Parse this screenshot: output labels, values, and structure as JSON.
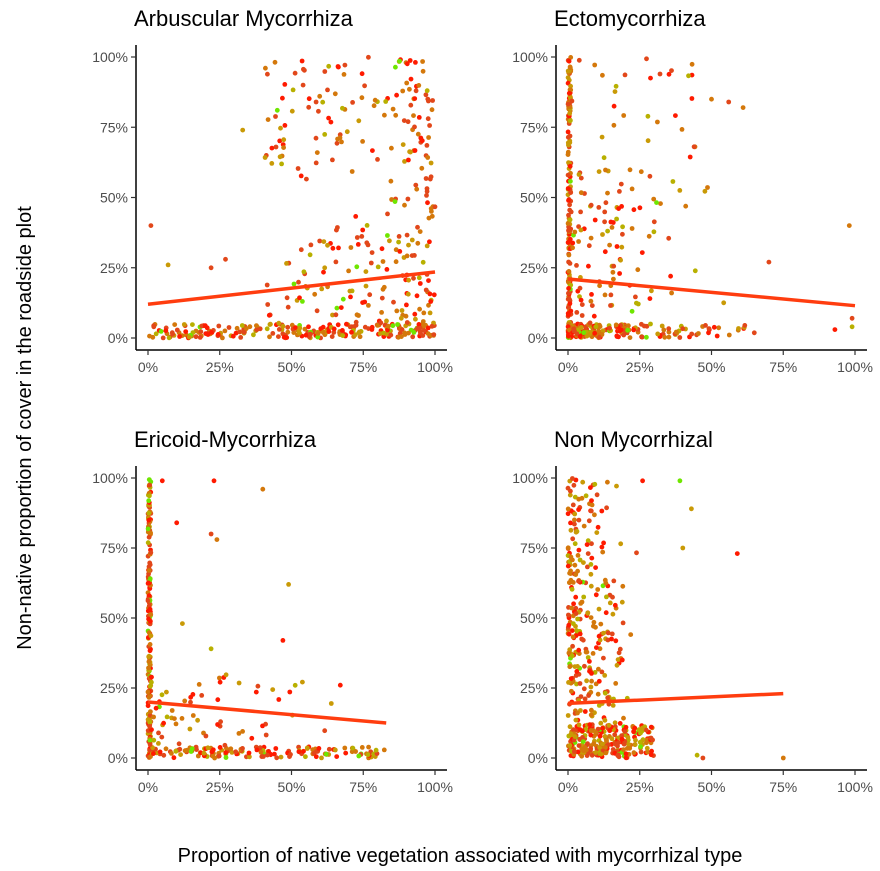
{
  "figure": {
    "xlabel": "Proportion of native vegetation associated with mycorrhizal type",
    "ylabel": "Non-native proportion of cover in the roadside plot"
  },
  "chart_data": [
    {
      "type": "scatter",
      "title": "Arbuscular Mycorrhiza",
      "xlabel": "Proportion of native vegetation associated with mycorrhizal type",
      "ylabel": "Non-native proportion of cover in the roadside plot",
      "xlim": [
        0,
        1
      ],
      "ylim": [
        0,
        1
      ],
      "x_ticks": [
        "0%",
        "25%",
        "50%",
        "75%",
        "100%"
      ],
      "y_ticks": [
        "0%",
        "25%",
        "50%",
        "75%",
        "100%"
      ],
      "trend_line": {
        "x": [
          0,
          1
        ],
        "y": [
          0.12,
          0.235
        ]
      },
      "point_count_estimate": 520,
      "point_pattern": "points spread across x; dense near y=0 and increasingly spread up to 100% for x above 0.4",
      "colors": {
        "points": [
          "#ff1a00",
          "#e2471a",
          "#d4780b",
          "#c99a06",
          "#b8b000",
          "#6fe600"
        ],
        "trend": "#ff3d0f"
      },
      "grid": false
    },
    {
      "type": "scatter",
      "title": "Ectomycorrhiza",
      "xlabel": "Proportion of native vegetation associated with mycorrhizal type",
      "ylabel": "Non-native proportion of cover in the roadside plot",
      "xlim": [
        0,
        1
      ],
      "ylim": [
        0,
        1
      ],
      "x_ticks": [
        "0%",
        "25%",
        "50%",
        "75%",
        "100%"
      ],
      "y_ticks": [
        "0%",
        "25%",
        "50%",
        "75%",
        "100%"
      ],
      "trend_line": {
        "x": [
          0,
          1
        ],
        "y": [
          0.21,
          0.115
        ]
      },
      "point_count_estimate": 480,
      "point_pattern": "dense vertical band at x=0 spanning 0-100%; scattered points mostly below x=0.6",
      "colors": {
        "points": [
          "#ff1a00",
          "#e2471a",
          "#d4780b",
          "#c99a06",
          "#b8b000",
          "#6fe600"
        ],
        "trend": "#ff3d0f"
      },
      "grid": false
    },
    {
      "type": "scatter",
      "title": "Ericoid-Mycorrhiza",
      "xlabel": "Proportion of native vegetation associated with mycorrhizal type",
      "ylabel": "Non-native proportion of cover in the roadside plot",
      "xlim": [
        0,
        1
      ],
      "ylim": [
        0,
        1
      ],
      "x_ticks": [
        "0%",
        "25%",
        "50%",
        "75%",
        "100%"
      ],
      "y_ticks": [
        "0%",
        "25%",
        "50%",
        "75%",
        "100%"
      ],
      "trend_line": {
        "x": [
          0,
          0.83
        ],
        "y": [
          0.2,
          0.125
        ]
      },
      "point_count_estimate": 420,
      "point_pattern": "dense vertical band at x=0 spanning 0-100%; sparse points to x=0.83 mostly near 0%",
      "colors": {
        "points": [
          "#ff1a00",
          "#e2471a",
          "#d4780b",
          "#c99a06",
          "#b8b000",
          "#6fe600"
        ],
        "trend": "#ff3d0f"
      },
      "grid": false
    },
    {
      "type": "scatter",
      "title": "Non Mycorrhizal",
      "xlabel": "Proportion of native vegetation associated with mycorrhizal type",
      "ylabel": "Non-native proportion of cover in the roadside plot",
      "xlim": [
        0,
        1
      ],
      "ylim": [
        0,
        1
      ],
      "x_ticks": [
        "0%",
        "25%",
        "50%",
        "75%",
        "100%"
      ],
      "y_ticks": [
        "0%",
        "25%",
        "50%",
        "75%",
        "100%"
      ],
      "trend_line": {
        "x": [
          0,
          0.75
        ],
        "y": [
          0.195,
          0.23
        ]
      },
      "point_count_estimate": 560,
      "point_pattern": "dense cluster for x between 0 and 0.25 spanning 0-100%; a few outliers up to x=0.75",
      "colors": {
        "points": [
          "#ff1a00",
          "#e2471a",
          "#d4780b",
          "#c99a06",
          "#b8b000",
          "#6fe600"
        ],
        "trend": "#ff3d0f"
      },
      "grid": false
    }
  ]
}
